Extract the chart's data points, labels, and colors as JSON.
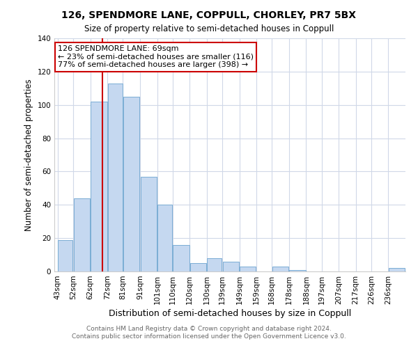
{
  "title": "126, SPENDMORE LANE, COPPULL, CHORLEY, PR7 5BX",
  "subtitle": "Size of property relative to semi-detached houses in Coppull",
  "xlabel": "Distribution of semi-detached houses by size in Coppull",
  "ylabel": "Number of semi-detached properties",
  "annotation_line1": "126 SPENDMORE LANE: 69sqm",
  "annotation_line2": "← 23% of semi-detached houses are smaller (116)",
  "annotation_line3": "77% of semi-detached houses are larger (398) →",
  "bin_edges": [
    43,
    52,
    62,
    72,
    81,
    91,
    101,
    110,
    120,
    130,
    139,
    149,
    159,
    168,
    178,
    188,
    197,
    207,
    217,
    226,
    236
  ],
  "bin_labels": [
    "43sqm",
    "52sqm",
    "62sqm",
    "72sqm",
    "81sqm",
    "91sqm",
    "101sqm",
    "110sqm",
    "120sqm",
    "130sqm",
    "139sqm",
    "149sqm",
    "159sqm",
    "168sqm",
    "178sqm",
    "188sqm",
    "197sqm",
    "207sqm",
    "217sqm",
    "226sqm",
    "236sqm"
  ],
  "bar_heights": [
    19,
    44,
    102,
    113,
    105,
    57,
    40,
    16,
    5,
    8,
    6,
    3,
    0,
    3,
    1,
    0,
    0,
    0,
    0,
    0,
    2
  ],
  "bar_color": "#c5d8f0",
  "bar_edge_color": "#7aadd4",
  "vline_color": "#cc0000",
  "vline_x": 69,
  "ylim": [
    0,
    140
  ],
  "yticks": [
    0,
    20,
    40,
    60,
    80,
    100,
    120,
    140
  ],
  "footer_line1": "Contains HM Land Registry data © Crown copyright and database right 2024.",
  "footer_line2": "Contains public sector information licensed under the Open Government Licence v3.0.",
  "background_color": "#ffffff",
  "plot_background": "#ffffff",
  "grid_color": "#d0d8e8"
}
